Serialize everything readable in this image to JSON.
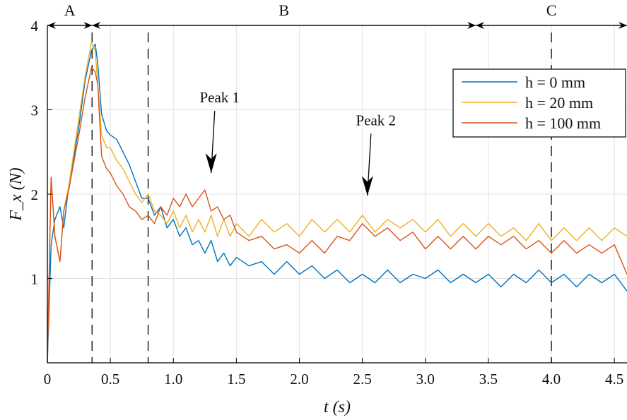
{
  "chart_data": {
    "type": "line",
    "xlabel": "t (s)",
    "ylabel": "F_x (N)",
    "xlim": [
      0,
      4.6
    ],
    "ylim": [
      0,
      4
    ],
    "xticks": [
      0,
      0.5,
      1.0,
      1.5,
      2.0,
      2.5,
      3.0,
      3.5,
      4.0,
      4.5
    ],
    "xtick_labels": [
      "0",
      "0.5",
      "1.0",
      "1.5",
      "2.0",
      "2.5",
      "3.0",
      "3.5",
      "4.0",
      "4.5"
    ],
    "yticks": [
      1,
      2,
      3,
      4
    ],
    "ytick_labels": [
      "1",
      "2",
      "3",
      "4"
    ],
    "grid": true,
    "legend_position": "top-right",
    "series": [
      {
        "name": "h = 0 mm",
        "color": "#0072BD",
        "x": [
          0,
          0.03,
          0.06,
          0.1,
          0.13,
          0.17,
          0.2,
          0.25,
          0.3,
          0.35,
          0.38,
          0.4,
          0.43,
          0.47,
          0.5,
          0.55,
          0.6,
          0.65,
          0.7,
          0.75,
          0.8,
          0.85,
          0.9,
          0.95,
          1.0,
          1.05,
          1.1,
          1.15,
          1.2,
          1.25,
          1.3,
          1.35,
          1.4,
          1.45,
          1.5,
          1.6,
          1.7,
          1.8,
          1.9,
          2.0,
          2.1,
          2.2,
          2.3,
          2.4,
          2.5,
          2.6,
          2.7,
          2.8,
          2.9,
          3.0,
          3.1,
          3.2,
          3.3,
          3.4,
          3.5,
          3.6,
          3.7,
          3.8,
          3.9,
          4.0,
          4.1,
          4.2,
          4.3,
          4.4,
          4.5,
          4.6
        ],
        "y": [
          0,
          1.4,
          1.7,
          1.85,
          1.6,
          2.1,
          2.35,
          2.8,
          3.35,
          3.7,
          3.78,
          3.55,
          2.95,
          2.75,
          2.7,
          2.65,
          2.5,
          2.35,
          2.15,
          1.95,
          1.95,
          1.75,
          1.85,
          1.6,
          1.7,
          1.5,
          1.6,
          1.4,
          1.45,
          1.3,
          1.45,
          1.2,
          1.3,
          1.15,
          1.25,
          1.15,
          1.2,
          1.05,
          1.2,
          1.05,
          1.15,
          1.0,
          1.1,
          0.95,
          1.05,
          0.95,
          1.1,
          0.95,
          1.05,
          1.0,
          1.1,
          0.95,
          1.05,
          0.95,
          1.05,
          0.9,
          1.05,
          0.95,
          1.1,
          0.95,
          1.05,
          0.9,
          1.05,
          0.95,
          1.05,
          0.85
        ]
      },
      {
        "name": "h = 20 mm",
        "color": "#EDB120",
        "x": [
          0,
          0.03,
          0.06,
          0.1,
          0.13,
          0.17,
          0.2,
          0.25,
          0.3,
          0.35,
          0.38,
          0.4,
          0.43,
          0.47,
          0.5,
          0.55,
          0.6,
          0.65,
          0.7,
          0.75,
          0.8,
          0.85,
          0.9,
          0.95,
          1.0,
          1.05,
          1.1,
          1.15,
          1.2,
          1.25,
          1.3,
          1.35,
          1.4,
          1.45,
          1.5,
          1.6,
          1.7,
          1.8,
          1.9,
          2.0,
          2.1,
          2.2,
          2.3,
          2.4,
          2.5,
          2.6,
          2.7,
          2.8,
          2.9,
          3.0,
          3.1,
          3.2,
          3.3,
          3.4,
          3.5,
          3.6,
          3.7,
          3.8,
          3.9,
          4.0,
          4.1,
          4.2,
          4.3,
          4.4,
          4.5,
          4.6
        ],
        "y": [
          0,
          2.2,
          1.5,
          1.2,
          1.8,
          2.1,
          2.4,
          2.9,
          3.4,
          3.8,
          3.7,
          3.3,
          2.7,
          2.55,
          2.55,
          2.4,
          2.3,
          2.15,
          2.0,
          1.9,
          2.0,
          1.8,
          1.75,
          1.65,
          1.8,
          1.6,
          1.75,
          1.55,
          1.7,
          1.55,
          1.75,
          1.5,
          1.7,
          1.5,
          1.65,
          1.5,
          1.7,
          1.55,
          1.65,
          1.5,
          1.7,
          1.55,
          1.7,
          1.55,
          1.75,
          1.55,
          1.7,
          1.6,
          1.7,
          1.55,
          1.7,
          1.5,
          1.65,
          1.5,
          1.65,
          1.5,
          1.6,
          1.45,
          1.65,
          1.45,
          1.6,
          1.45,
          1.6,
          1.45,
          1.6,
          1.5
        ]
      },
      {
        "name": "h = 100 mm",
        "color": "#D95319",
        "x": [
          0,
          0.03,
          0.06,
          0.1,
          0.13,
          0.17,
          0.2,
          0.25,
          0.3,
          0.35,
          0.38,
          0.4,
          0.43,
          0.47,
          0.5,
          0.55,
          0.6,
          0.65,
          0.7,
          0.75,
          0.8,
          0.85,
          0.9,
          0.95,
          1.0,
          1.05,
          1.1,
          1.15,
          1.2,
          1.25,
          1.3,
          1.35,
          1.4,
          1.45,
          1.5,
          1.6,
          1.7,
          1.8,
          1.9,
          2.0,
          2.1,
          2.2,
          2.3,
          2.4,
          2.5,
          2.6,
          2.7,
          2.8,
          2.9,
          3.0,
          3.1,
          3.2,
          3.3,
          3.4,
          3.5,
          3.6,
          3.7,
          3.8,
          3.9,
          4.0,
          4.1,
          4.2,
          4.3,
          4.4,
          4.5,
          4.6
        ],
        "y": [
          0,
          2.2,
          1.5,
          1.2,
          1.8,
          2.05,
          2.3,
          2.7,
          3.15,
          3.5,
          3.45,
          3.3,
          2.45,
          2.3,
          2.25,
          2.1,
          2.0,
          1.85,
          1.8,
          1.7,
          1.75,
          1.65,
          1.85,
          1.75,
          1.95,
          1.85,
          2.0,
          1.85,
          1.95,
          2.05,
          1.8,
          1.85,
          1.7,
          1.75,
          1.55,
          1.45,
          1.5,
          1.35,
          1.4,
          1.3,
          1.45,
          1.3,
          1.5,
          1.45,
          1.65,
          1.5,
          1.6,
          1.45,
          1.55,
          1.35,
          1.5,
          1.35,
          1.5,
          1.35,
          1.5,
          1.4,
          1.5,
          1.35,
          1.45,
          1.3,
          1.45,
          1.3,
          1.4,
          1.3,
          1.4,
          1.05
        ]
      }
    ],
    "phase_markers": [
      0.355,
      0.8,
      4.0
    ],
    "phases": [
      {
        "label": "A",
        "from": 0,
        "to": 0.355
      },
      {
        "label": "B",
        "from": 0.355,
        "to": 3.4
      },
      {
        "label": "C",
        "from": 3.4,
        "to": 4.6
      }
    ],
    "annotations": [
      {
        "text": "Peak 1",
        "x": 1.3,
        "y": 2.25
      },
      {
        "text": "Peak 2",
        "x": 2.54,
        "y": 1.98
      }
    ]
  }
}
